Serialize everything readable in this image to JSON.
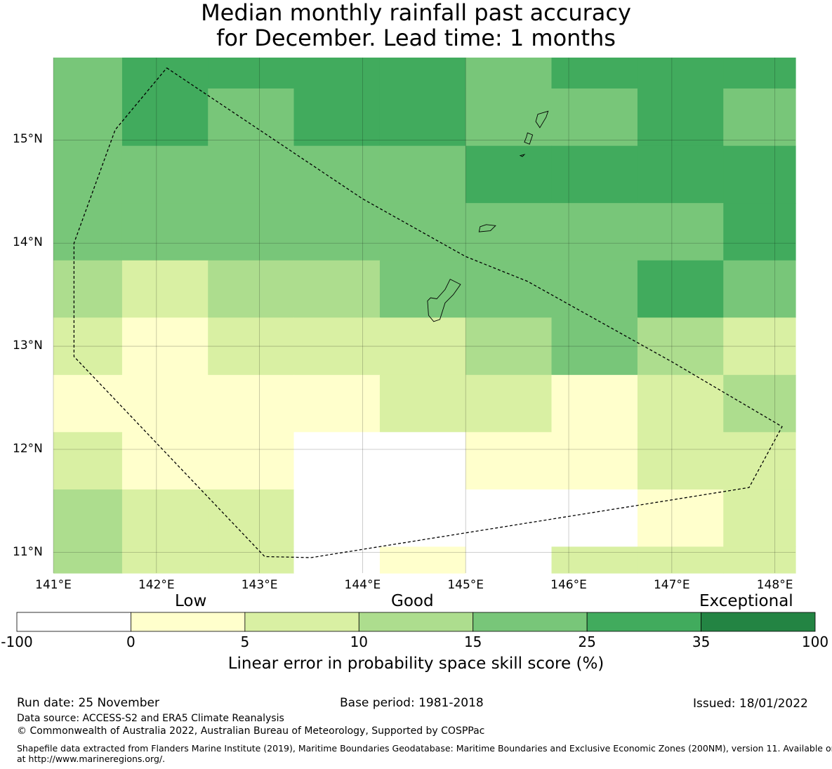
{
  "title_line1": "Median monthly rainfall past accuracy",
  "title_line2": "for December. Lead time: 1 months",
  "chart_data": {
    "type": "heatmap",
    "title": "Median monthly rainfall past accuracy for December. Lead time: 1 months",
    "lon_range": [
      141.0,
      148.2
    ],
    "lat_range": [
      10.8,
      15.8
    ],
    "lon_ticks": [
      "141°E",
      "142°E",
      "143°E",
      "144°E",
      "145°E",
      "146°E",
      "147°E",
      "148°E"
    ],
    "lat_ticks": [
      "11°N",
      "12°N",
      "13°N",
      "14°N",
      "15°N"
    ],
    "grid_lon_edges": [
      141.0,
      141.667,
      142.5,
      143.333,
      144.167,
      145.0,
      145.833,
      146.667,
      147.5,
      148.2
    ],
    "grid_lat_edges": [
      15.8,
      15.5,
      14.944,
      14.389,
      13.833,
      13.278,
      12.722,
      12.167,
      11.611,
      11.056,
      10.8
    ],
    "cell_classes": [
      [
        4,
        5,
        5,
        5,
        5,
        4,
        5,
        5,
        5
      ],
      [
        4,
        5,
        4,
        5,
        5,
        4,
        4,
        5,
        4
      ],
      [
        4,
        4,
        4,
        4,
        4,
        5,
        5,
        5,
        5
      ],
      [
        4,
        4,
        4,
        4,
        4,
        4,
        4,
        4,
        5
      ],
      [
        3,
        2,
        3,
        3,
        4,
        4,
        4,
        5,
        4
      ],
      [
        2,
        1,
        2,
        2,
        2,
        3,
        4,
        3,
        2
      ],
      [
        1,
        1,
        1,
        1,
        2,
        2,
        1,
        2,
        3
      ],
      [
        2,
        1,
        1,
        0,
        0,
        1,
        1,
        2,
        2
      ],
      [
        3,
        2,
        2,
        0,
        0,
        0,
        0,
        1,
        2
      ],
      [
        3,
        2,
        2,
        0,
        1,
        0,
        2,
        2,
        2
      ]
    ],
    "colorbar": {
      "boundaries": [
        "-100",
        "0",
        "5",
        "10",
        "15",
        "25",
        "35",
        "100"
      ],
      "colors": [
        "#ffffff",
        "#ffffcc",
        "#d9f0a3",
        "#addd8e",
        "#78c679",
        "#41ab5d",
        "#238443"
      ],
      "category_labels": [
        "Low",
        "Good",
        "Exceptional"
      ],
      "label": "Linear error in probability space skill score (%)"
    },
    "boundary_outline": [
      [
        142.1,
        15.7
      ],
      [
        144.0,
        14.43
      ],
      [
        145.0,
        13.87
      ],
      [
        145.6,
        13.63
      ],
      [
        147.0,
        12.85
      ],
      [
        148.07,
        12.22
      ],
      [
        147.75,
        11.63
      ],
      [
        143.5,
        10.95
      ],
      [
        143.05,
        10.96
      ],
      [
        141.2,
        12.9
      ],
      [
        141.2,
        13.1
      ],
      [
        141.2,
        14.0
      ],
      [
        141.6,
        15.1
      ],
      [
        142.1,
        15.7
      ]
    ],
    "islands": [
      {
        "name": "Saipan",
        "points": [
          [
            145.7,
            15.25
          ],
          [
            145.8,
            15.28
          ],
          [
            145.78,
            15.22
          ],
          [
            145.72,
            15.12
          ],
          [
            145.68,
            15.18
          ]
        ]
      },
      {
        "name": "Tinian",
        "points": [
          [
            145.6,
            15.07
          ],
          [
            145.65,
            15.05
          ],
          [
            145.62,
            14.96
          ],
          [
            145.57,
            14.98
          ],
          [
            145.59,
            15.03
          ]
        ]
      },
      {
        "name": "Aguijan",
        "points": [
          [
            145.53,
            14.85
          ],
          [
            145.57,
            14.86
          ],
          [
            145.55,
            14.84
          ]
        ]
      },
      {
        "name": "Rota",
        "points": [
          [
            145.14,
            14.16
          ],
          [
            145.2,
            14.18
          ],
          [
            145.29,
            14.17
          ],
          [
            145.24,
            14.12
          ],
          [
            145.13,
            14.11
          ]
        ]
      },
      {
        "name": "Guam",
        "points": [
          [
            144.85,
            13.65
          ],
          [
            144.95,
            13.6
          ],
          [
            144.88,
            13.5
          ],
          [
            144.8,
            13.42
          ],
          [
            144.75,
            13.26
          ],
          [
            144.69,
            13.24
          ],
          [
            144.64,
            13.3
          ],
          [
            144.63,
            13.44
          ],
          [
            144.66,
            13.47
          ],
          [
            144.72,
            13.46
          ],
          [
            144.8,
            13.55
          ]
        ]
      }
    ]
  },
  "footer": {
    "run_date": "Run date: 25 November",
    "base_period": "Base period: 1981-2018",
    "issued": "Issued: 18/01/2022",
    "data_source": "Data source: ACCESS-S2 and ERA5 Climate Reanalysis",
    "copyright": "© Commonwealth of Australia 2022, Australian Bureau of Meteorology, Supported by COSPPac",
    "shapefile_line1": "Shapefile data extracted from Flanders Marine Institute (2019), Maritime Boundaries Geodatabase: Maritime Boundaries and Exclusive Economic Zones (200NM), version 11. Available online",
    "shapefile_line2": "at http://www.marineregions.org/."
  }
}
